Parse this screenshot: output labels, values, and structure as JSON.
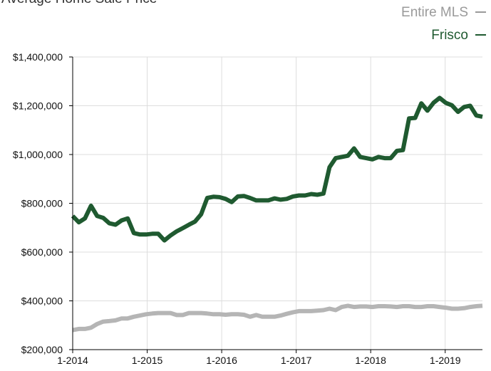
{
  "chart_data": {
    "type": "line",
    "title": "Average Home Sale Price",
    "xlabel": "",
    "ylabel": "",
    "ylim": [
      200000,
      1400000
    ],
    "x_tick_labels": [
      "1-2014",
      "1-2015",
      "1-2016",
      "1-2017",
      "1-2018",
      "1-2019"
    ],
    "y_tick_labels": [
      "$200,000",
      "$400,000",
      "$600,000",
      "$800,000",
      "$1,000,000",
      "$1,200,000",
      "$1,400,000"
    ],
    "y_ticks": [
      200000,
      400000,
      600000,
      800000,
      1000000,
      1200000,
      1400000
    ],
    "grid": true,
    "legend_position": "top-right",
    "x_start": "2014-01",
    "x_end": "2019-07",
    "series": [
      {
        "name": "Entire MLS",
        "color": "#b5b5b5",
        "values": [
          280000,
          285000,
          285000,
          290000,
          305000,
          315000,
          317000,
          320000,
          328000,
          328000,
          335000,
          340000,
          345000,
          348000,
          350000,
          350000,
          350000,
          342000,
          342000,
          350000,
          350000,
          350000,
          348000,
          345000,
          345000,
          343000,
          345000,
          345000,
          343000,
          335000,
          342000,
          335000,
          335000,
          335000,
          340000,
          347000,
          353000,
          358000,
          358000,
          358000,
          360000,
          362000,
          368000,
          362000,
          375000,
          380000,
          375000,
          377000,
          377000,
          375000,
          378000,
          378000,
          377000,
          375000,
          378000,
          378000,
          375000,
          375000,
          378000,
          378000,
          375000,
          372000,
          368000,
          368000,
          370000,
          375000,
          378000,
          380000
        ]
      },
      {
        "name": "Frisco",
        "color": "#1f5a30",
        "values": [
          748000,
          722000,
          738000,
          790000,
          748000,
          740000,
          718000,
          712000,
          730000,
          738000,
          678000,
          672000,
          672000,
          675000,
          675000,
          648000,
          668000,
          685000,
          698000,
          712000,
          725000,
          755000,
          822000,
          827000,
          825000,
          818000,
          805000,
          828000,
          830000,
          822000,
          812000,
          812000,
          812000,
          820000,
          815000,
          818000,
          828000,
          832000,
          832000,
          838000,
          835000,
          840000,
          948000,
          985000,
          990000,
          995000,
          1025000,
          990000,
          985000,
          980000,
          990000,
          985000,
          985000,
          1015000,
          1018000,
          1148000,
          1150000,
          1210000,
          1180000,
          1212000,
          1232000,
          1212000,
          1202000,
          1175000,
          1195000,
          1200000,
          1160000,
          1155000
        ]
      }
    ],
    "partial_header_text": "Average Home Sale Price"
  }
}
